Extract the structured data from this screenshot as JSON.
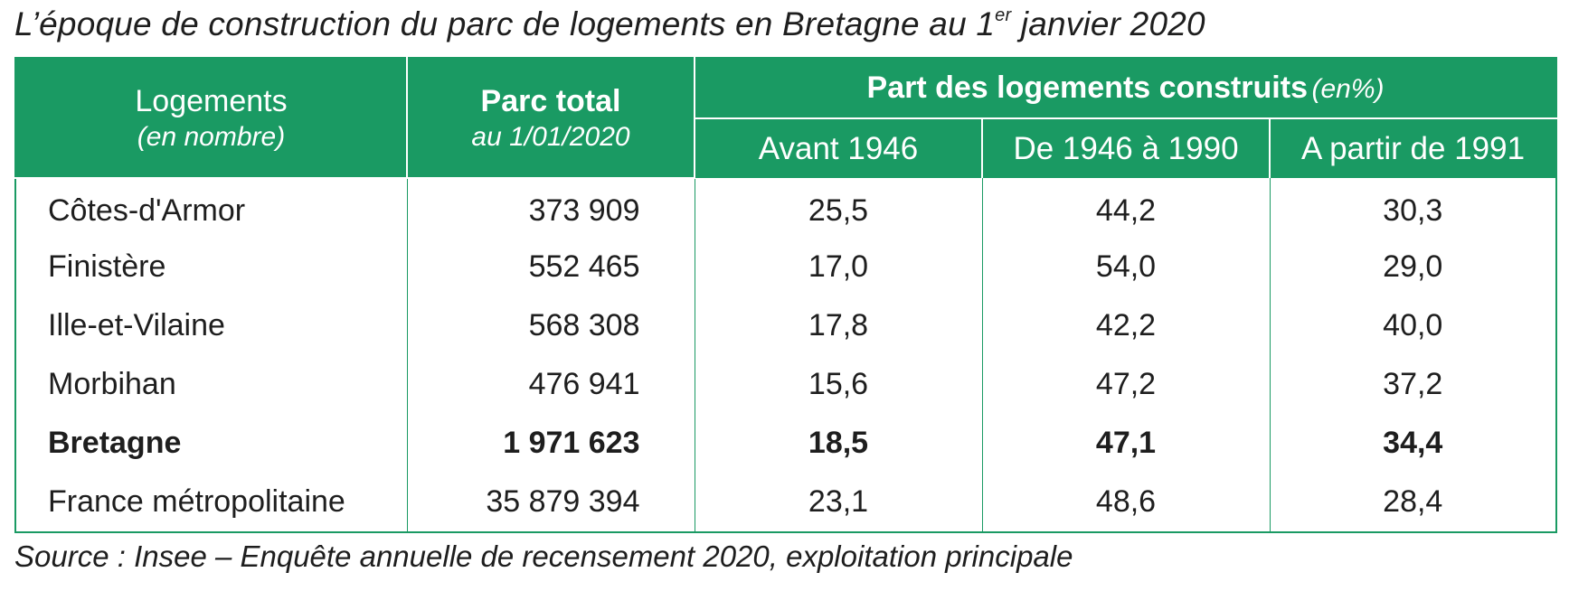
{
  "title": {
    "before_sup": "L’époque de construction du parc de logements en Bretagne au 1",
    "sup": "er",
    "after_sup": " janvier 2020"
  },
  "table": {
    "header": {
      "col1_main": "Logements",
      "col1_sub": "(en nombre)",
      "col2_main": "Parc total",
      "col2_sub": "au 1/01/2020",
      "group_main": "Part des logements construits",
      "group_unit": "(en%)",
      "periods": [
        "Avant 1946",
        "De 1946 à 1990",
        "A partir de 1991"
      ]
    },
    "rows": [
      {
        "label": "Côtes-d'Armor",
        "total": "373 909",
        "avant_1946": "25,5",
        "de_1946_a_1990": "44,2",
        "a_partir_1991": "30,3"
      },
      {
        "label": "Finistère",
        "total": "552 465",
        "avant_1946": "17,0",
        "de_1946_a_1990": "54,0",
        "a_partir_1991": "29,0"
      },
      {
        "label": "Ille-et-Vilaine",
        "total": "568 308",
        "avant_1946": "17,8",
        "de_1946_a_1990": "42,2",
        "a_partir_1991": "40,0"
      },
      {
        "label": "Morbihan",
        "total": "476 941",
        "avant_1946": "15,6",
        "de_1946_a_1990": "47,2",
        "a_partir_1991": "37,2"
      },
      {
        "label": "Bretagne",
        "total": "1 971 623",
        "avant_1946": "18,5",
        "de_1946_a_1990": "47,1",
        "a_partir_1991": "34,4"
      },
      {
        "label": "France métropolitaine",
        "total": "35 879 394",
        "avant_1946": "23,1",
        "de_1946_a_1990": "48,6",
        "a_partir_1991": "28,4"
      }
    ]
  },
  "source": "Source : Insee – Enquête annuelle de recensement 2020, exploitation principale",
  "colors": {
    "header_green": "#1a9a63",
    "header_text": "#ffffff",
    "body_text": "#1e1e1e"
  }
}
